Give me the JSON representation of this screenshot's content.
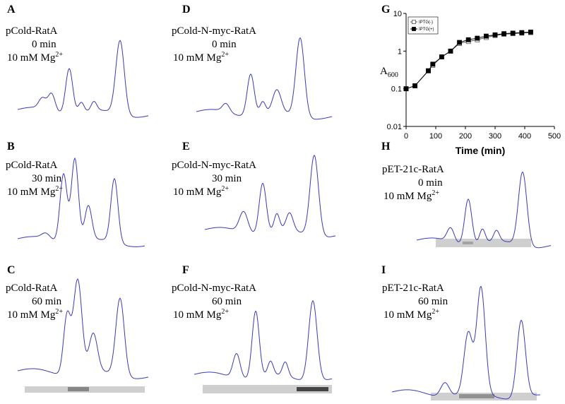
{
  "panels": [
    {
      "letter": "A",
      "construct": "pCold-RatA",
      "time": "0 min",
      "condition": "10 mM Mg",
      "condition_sup": "2+"
    },
    {
      "letter": "B",
      "construct": "pCold-RatA",
      "time": "30 min",
      "condition": "10 mM Mg",
      "condition_sup": "2+"
    },
    {
      "letter": "C",
      "construct": "pCold-RatA",
      "time": "60 min",
      "condition": "10 mM Mg",
      "condition_sup": "2+"
    },
    {
      "letter": "D",
      "construct": "pCold-N-myc-RatA",
      "time": "0 min",
      "condition": "10 mM Mg",
      "condition_sup": "2+"
    },
    {
      "letter": "E",
      "construct": "pCold-N-myc-RatA",
      "time": "30 min",
      "condition": "10 mM Mg",
      "condition_sup": "2+"
    },
    {
      "letter": "F",
      "construct": "pCold-N-myc-RatA",
      "time": "60 min",
      "condition": "10 mM Mg",
      "condition_sup": "2+"
    },
    {
      "letter": "H",
      "construct": "pET-21c-RatA",
      "time": "0 min",
      "condition": "10 mM Mg",
      "condition_sup": "2+"
    },
    {
      "letter": "I",
      "construct": "pET-21c-RatA",
      "time": "60 min",
      "condition": "10 mM Mg",
      "condition_sup": "2+"
    }
  ],
  "chart_data": {
    "type": "line",
    "label": "G",
    "y_label": "A",
    "y_label_sub": "600",
    "x_label": "Time (min)",
    "log_y": true,
    "x": [
      0,
      30,
      75,
      90,
      120,
      150,
      180,
      210,
      240,
      270,
      300,
      330,
      360,
      390,
      420
    ],
    "series": [
      {
        "name": "IPTG(-)",
        "color": "#555555",
        "marker": "open-square",
        "values": [
          0.1,
          0.12,
          0.3,
          0.42,
          0.7,
          1.0,
          1.6,
          1.8,
          2.0,
          2.3,
          2.6,
          2.8,
          2.9,
          3.0,
          3.1
        ]
      },
      {
        "name": "IPTG(+)",
        "color": "#000000",
        "marker": "filled-square",
        "values": [
          0.1,
          0.12,
          0.3,
          0.45,
          0.7,
          1.0,
          1.7,
          2.0,
          2.2,
          2.5,
          2.7,
          2.9,
          3.0,
          3.1,
          3.2
        ]
      }
    ],
    "xlim": [
      0,
      500
    ],
    "xticks": [
      0,
      100,
      200,
      300,
      400,
      500
    ],
    "ylim": [
      0.01,
      10
    ],
    "yticks": [
      0.01,
      0.1,
      1,
      10
    ]
  }
}
